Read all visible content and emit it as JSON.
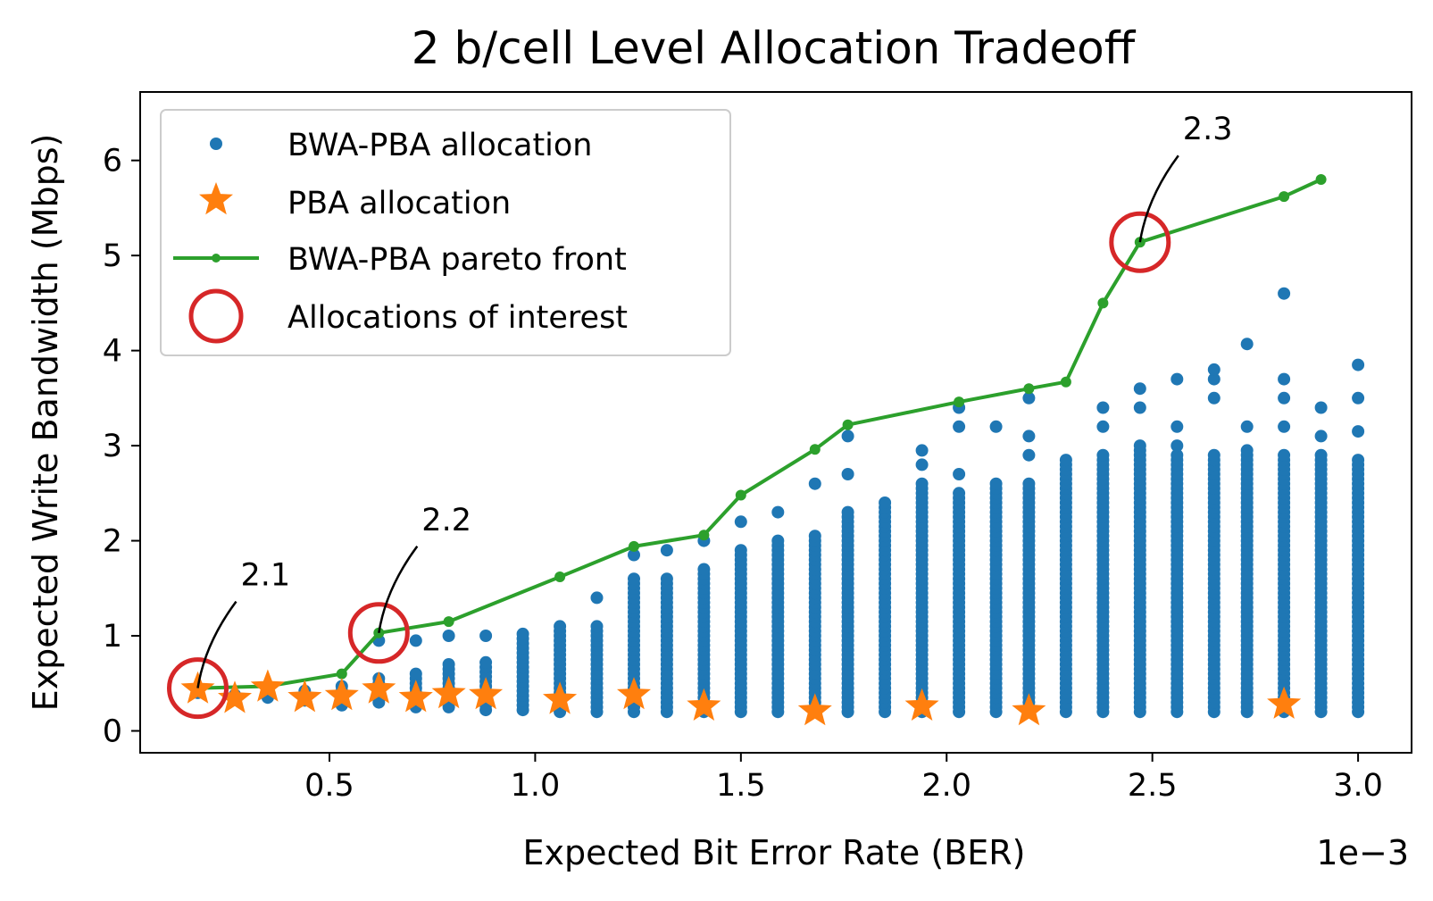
{
  "chart_data": {
    "type": "scatter",
    "title": "2 b/cell Level Allocation Tradeoff",
    "xlabel": "Expected Bit Error Rate (BER)",
    "ylabel": "Expected Write Bandwidth (Mbps)",
    "x_offset_label": "1e−3",
    "xlim": [
      4e-05,
      0.00313
    ],
    "ylim": [
      -0.23,
      6.72
    ],
    "xticks": [
      0.0005,
      0.001,
      0.0015,
      0.002,
      0.0025,
      0.003
    ],
    "xtick_labels": [
      "0.5",
      "1.0",
      "1.5",
      "2.0",
      "2.5",
      "3.0"
    ],
    "yticks": [
      0,
      1,
      2,
      3,
      4,
      5,
      6
    ],
    "ytick_labels": [
      "0",
      "1",
      "2",
      "3",
      "4",
      "5",
      "6"
    ],
    "grid": false,
    "legend_position": "upper-left",
    "colors": {
      "bwa_pba": "#1f77b4",
      "pba": "#ff7f0e",
      "pareto": "#2ca02c",
      "interest": "#d62728"
    },
    "series": [
      {
        "name": "BWA-PBA allocation",
        "marker": "dot",
        "columns": [
          {
            "x": 0.00018,
            "ymin": 0.4,
            "ymax": 0.45,
            "extra": []
          },
          {
            "x": 0.00027,
            "ymin": 0.38,
            "ymax": 0.42,
            "extra": []
          },
          {
            "x": 0.00035,
            "ymin": 0.35,
            "ymax": 0.47,
            "extra": []
          },
          {
            "x": 0.00044,
            "ymin": 0.32,
            "ymax": 0.45,
            "extra": []
          },
          {
            "x": 0.00053,
            "ymin": 0.27,
            "ymax": 0.5,
            "extra": []
          },
          {
            "x": 0.00062,
            "ymin": 0.3,
            "ymax": 0.55,
            "extra": [
              0.95
            ]
          },
          {
            "x": 0.00071,
            "ymin": 0.25,
            "ymax": 0.6,
            "extra": [
              0.95
            ]
          },
          {
            "x": 0.00079,
            "ymin": 0.25,
            "ymax": 0.7,
            "extra": [
              1.0
            ]
          },
          {
            "x": 0.00088,
            "ymin": 0.22,
            "ymax": 0.75,
            "extra": [
              1.0
            ]
          },
          {
            "x": 0.00097,
            "ymin": 0.22,
            "ymax": 1.05,
            "extra": []
          },
          {
            "x": 0.00106,
            "ymin": 0.2,
            "ymax": 1.1,
            "extra": []
          },
          {
            "x": 0.00115,
            "ymin": 0.2,
            "ymax": 1.1,
            "extra": [
              1.4
            ]
          },
          {
            "x": 0.00124,
            "ymin": 0.2,
            "ymax": 1.6,
            "extra": [
              1.85
            ]
          },
          {
            "x": 0.00132,
            "ymin": 0.2,
            "ymax": 1.6,
            "extra": [
              1.9
            ]
          },
          {
            "x": 0.00141,
            "ymin": 0.2,
            "ymax": 1.7,
            "extra": [
              2.0
            ]
          },
          {
            "x": 0.0015,
            "ymin": 0.2,
            "ymax": 1.9,
            "extra": [
              2.2
            ]
          },
          {
            "x": 0.00159,
            "ymin": 0.2,
            "ymax": 2.0,
            "extra": [
              2.3
            ]
          },
          {
            "x": 0.00168,
            "ymin": 0.2,
            "ymax": 2.05,
            "extra": [
              2.6
            ]
          },
          {
            "x": 0.00176,
            "ymin": 0.2,
            "ymax": 2.3,
            "extra": [
              2.7,
              3.1
            ]
          },
          {
            "x": 0.00185,
            "ymin": 0.2,
            "ymax": 2.4,
            "extra": []
          },
          {
            "x": 0.00194,
            "ymin": 0.2,
            "ymax": 2.6,
            "extra": [
              2.8,
              2.95
            ]
          },
          {
            "x": 0.00203,
            "ymin": 0.2,
            "ymax": 2.5,
            "extra": [
              2.7,
              3.2,
              3.4
            ]
          },
          {
            "x": 0.00212,
            "ymin": 0.2,
            "ymax": 2.6,
            "extra": [
              3.2
            ]
          },
          {
            "x": 0.0022,
            "ymin": 0.2,
            "ymax": 2.6,
            "extra": [
              2.9,
              3.1,
              3.5
            ]
          },
          {
            "x": 0.00229,
            "ymin": 0.2,
            "ymax": 2.85,
            "extra": []
          },
          {
            "x": 0.00238,
            "ymin": 0.2,
            "ymax": 2.9,
            "extra": [
              3.2,
              3.4
            ]
          },
          {
            "x": 0.00247,
            "ymin": 0.2,
            "ymax": 3.0,
            "extra": [
              3.4,
              3.6
            ]
          },
          {
            "x": 0.00256,
            "ymin": 0.2,
            "ymax": 2.9,
            "extra": [
              3.0,
              3.2,
              3.7
            ]
          },
          {
            "x": 0.00265,
            "ymin": 0.2,
            "ymax": 2.9,
            "extra": [
              3.5,
              3.7,
              3.8
            ]
          },
          {
            "x": 0.00273,
            "ymin": 0.2,
            "ymax": 2.95,
            "extra": [
              3.2,
              4.07
            ]
          },
          {
            "x": 0.00282,
            "ymin": 0.2,
            "ymax": 2.9,
            "extra": [
              3.2,
              3.5,
              3.7,
              4.6
            ]
          },
          {
            "x": 0.00291,
            "ymin": 0.2,
            "ymax": 2.9,
            "extra": [
              3.1,
              3.4
            ]
          },
          {
            "x": 0.003,
            "ymin": 0.2,
            "ymax": 2.85,
            "extra": [
              3.15,
              3.5,
              3.85
            ]
          }
        ]
      },
      {
        "name": "PBA allocation",
        "marker": "star",
        "points": [
          {
            "x": 0.00018,
            "y": 0.44
          },
          {
            "x": 0.00027,
            "y": 0.34
          },
          {
            "x": 0.00035,
            "y": 0.46
          },
          {
            "x": 0.00044,
            "y": 0.35
          },
          {
            "x": 0.00053,
            "y": 0.37
          },
          {
            "x": 0.00062,
            "y": 0.44
          },
          {
            "x": 0.00071,
            "y": 0.35
          },
          {
            "x": 0.00079,
            "y": 0.39
          },
          {
            "x": 0.00088,
            "y": 0.38
          },
          {
            "x": 0.00106,
            "y": 0.33
          },
          {
            "x": 0.00124,
            "y": 0.38
          },
          {
            "x": 0.00141,
            "y": 0.26
          },
          {
            "x": 0.00168,
            "y": 0.21
          },
          {
            "x": 0.00194,
            "y": 0.26
          },
          {
            "x": 0.0022,
            "y": 0.21
          },
          {
            "x": 0.00282,
            "y": 0.28
          }
        ]
      },
      {
        "name": "BWA-PBA pareto front",
        "marker": "line-dot",
        "points": [
          {
            "x": 0.00018,
            "y": 0.45
          },
          {
            "x": 0.00035,
            "y": 0.47
          },
          {
            "x": 0.00053,
            "y": 0.6
          },
          {
            "x": 0.00062,
            "y": 1.03
          },
          {
            "x": 0.00079,
            "y": 1.15
          },
          {
            "x": 0.00106,
            "y": 1.62
          },
          {
            "x": 0.00124,
            "y": 1.94
          },
          {
            "x": 0.00141,
            "y": 2.06
          },
          {
            "x": 0.0015,
            "y": 2.48
          },
          {
            "x": 0.00168,
            "y": 2.96
          },
          {
            "x": 0.00176,
            "y": 3.22
          },
          {
            "x": 0.00203,
            "y": 3.46
          },
          {
            "x": 0.0022,
            "y": 3.6
          },
          {
            "x": 0.00229,
            "y": 3.67
          },
          {
            "x": 0.00238,
            "y": 4.5
          },
          {
            "x": 0.00247,
            "y": 5.14
          },
          {
            "x": 0.00282,
            "y": 5.62
          },
          {
            "x": 0.00291,
            "y": 5.8
          }
        ]
      },
      {
        "name": "Allocations of interest",
        "marker": "circle",
        "points": [
          {
            "x": 0.00018,
            "y": 0.45,
            "label": "2.1"
          },
          {
            "x": 0.00062,
            "y": 1.03,
            "label": "2.2"
          },
          {
            "x": 0.00247,
            "y": 5.14,
            "label": "2.3"
          }
        ]
      }
    ]
  }
}
